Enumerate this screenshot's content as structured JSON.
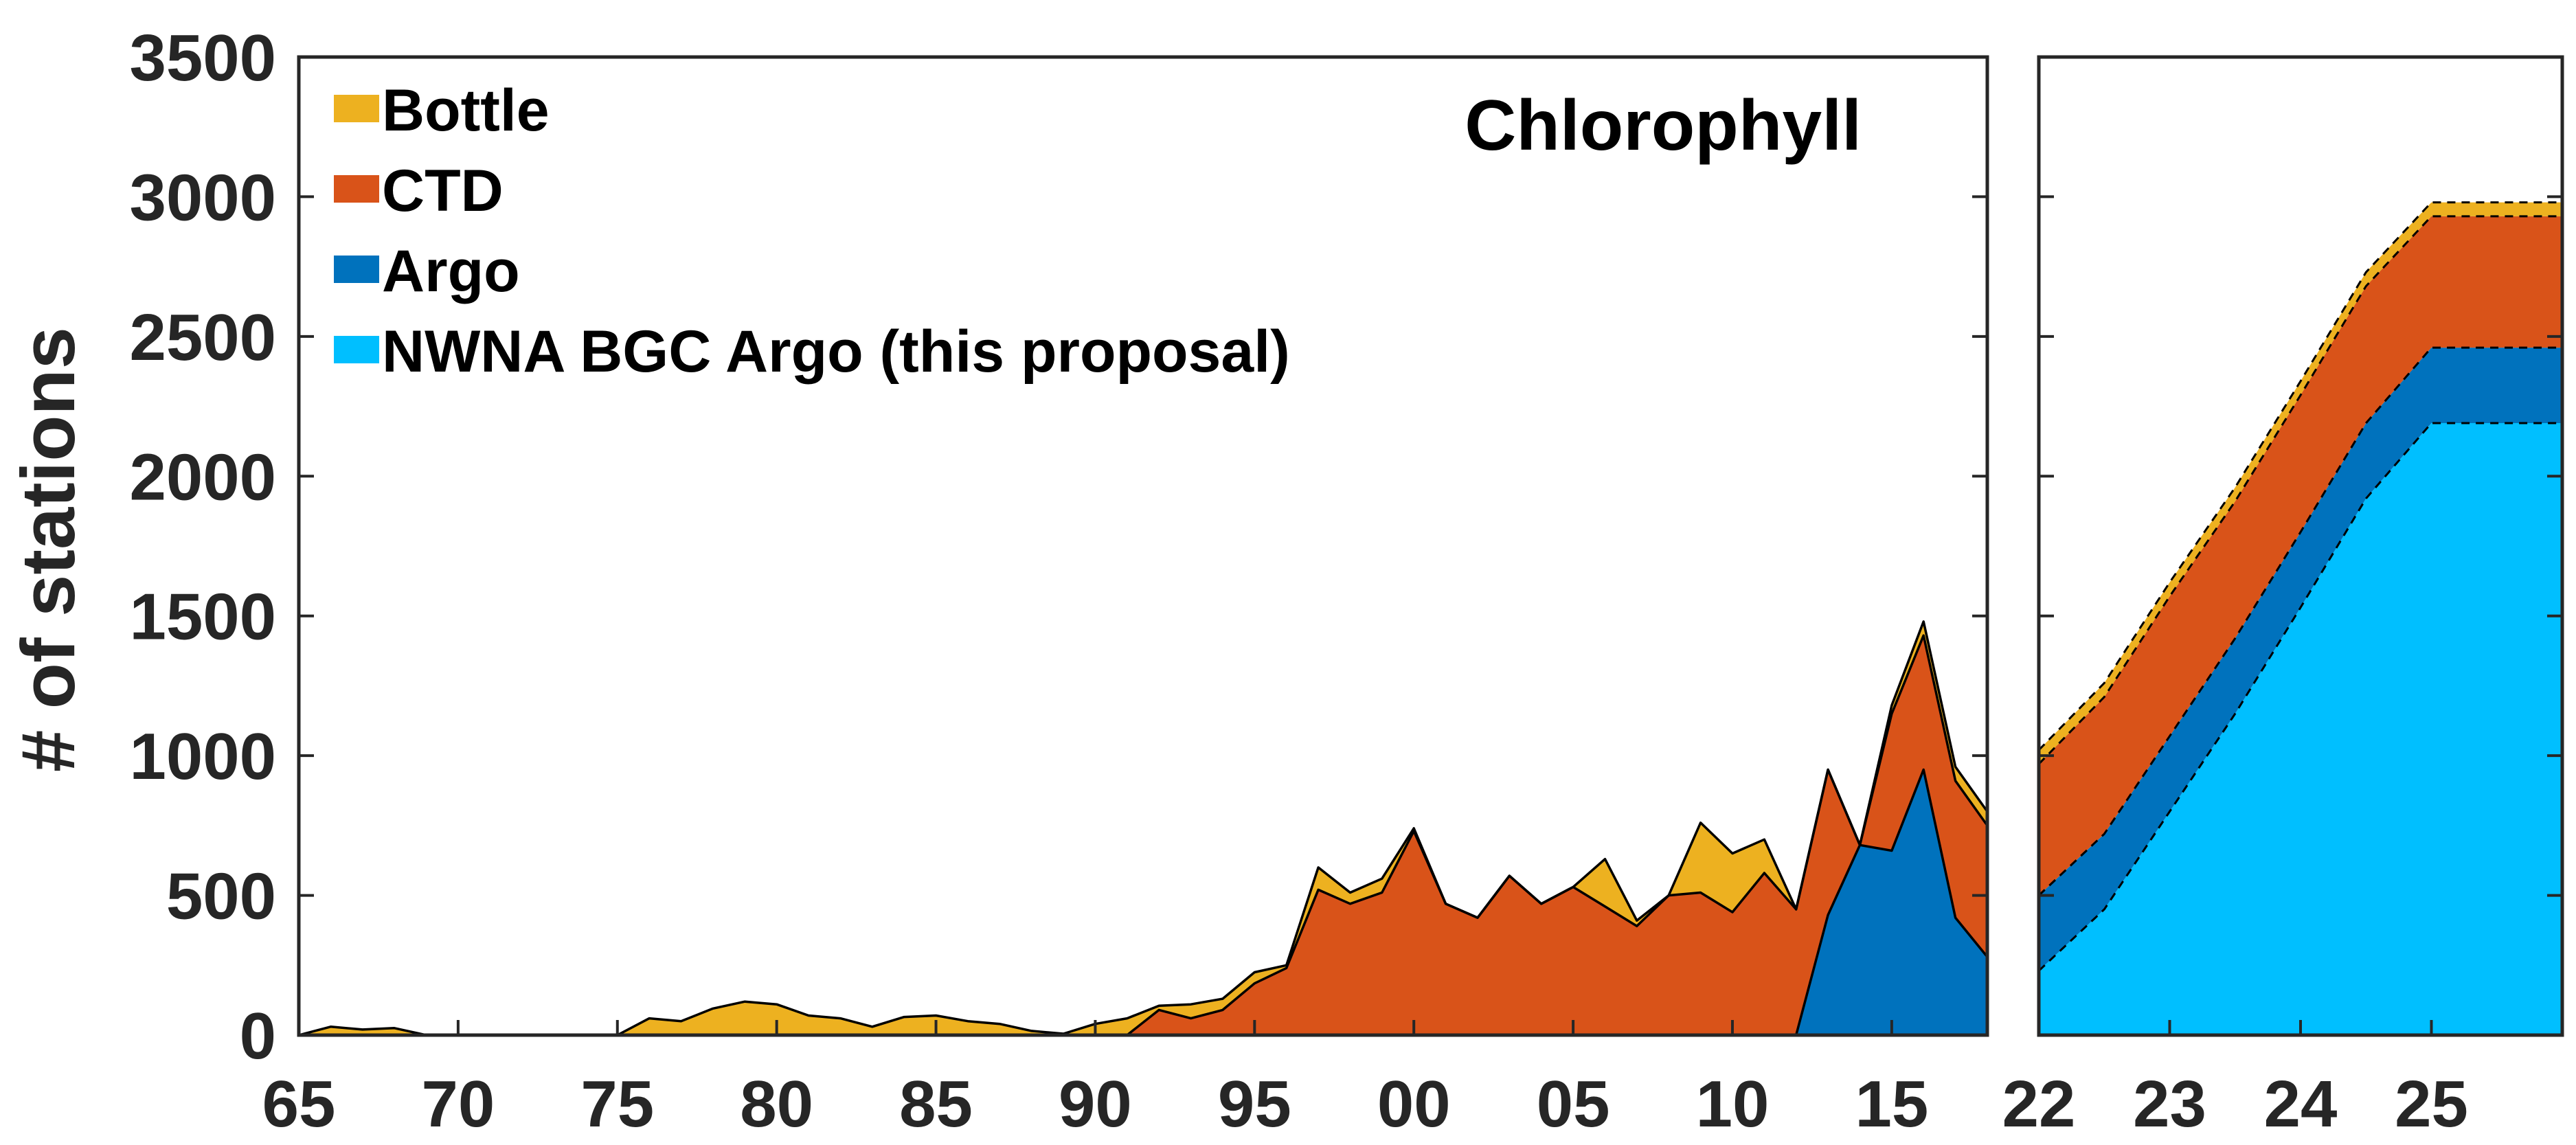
{
  "chart_data": [
    {
      "type": "area",
      "stacked": true,
      "x_unit": "year (two-digit, 1965-2018)",
      "x": [
        1965,
        1966,
        1967,
        1968,
        1969,
        1970,
        1971,
        1972,
        1973,
        1974,
        1975,
        1976,
        1977,
        1978,
        1979,
        1980,
        1981,
        1982,
        1983,
        1984,
        1985,
        1986,
        1987,
        1988,
        1989,
        1990,
        1991,
        1992,
        1993,
        1994,
        1995,
        1996,
        1997,
        1998,
        1999,
        2000,
        2001,
        2002,
        2003,
        2004,
        2005,
        2006,
        2007,
        2008,
        2009,
        2010,
        2011,
        2012,
        2013,
        2014,
        2015,
        2016,
        2017,
        2018
      ],
      "xticks": [
        1965,
        1970,
        1975,
        1980,
        1985,
        1990,
        1995,
        2000,
        2005,
        2010,
        2015
      ],
      "xtick_labels": [
        "65",
        "70",
        "75",
        "80",
        "85",
        "90",
        "95",
        "00",
        "05",
        "10",
        "15"
      ],
      "xlim": [
        1965,
        2018
      ],
      "ylim": [
        0,
        3500
      ],
      "yticks": [
        0,
        500,
        1000,
        1500,
        2000,
        2500,
        3000,
        3500
      ],
      "ytick_labels": [
        "0",
        "500",
        "1000",
        "1500",
        "2000",
        "2500",
        "3000",
        "3500"
      ],
      "ylabel": "# of stations",
      "annotation": "Chlorophyll",
      "legend_position": "top-left",
      "series": [
        {
          "name": "NWNA BGC Argo (this proposal)",
          "color": "#00BFFF",
          "values": [
            0,
            0,
            0,
            0,
            0,
            0,
            0,
            0,
            0,
            0,
            0,
            0,
            0,
            0,
            0,
            0,
            0,
            0,
            0,
            0,
            0,
            0,
            0,
            0,
            0,
            0,
            0,
            0,
            0,
            0,
            0,
            0,
            0,
            0,
            0,
            0,
            0,
            0,
            0,
            0,
            0,
            0,
            0,
            0,
            0,
            0,
            0,
            0,
            0,
            0,
            0,
            0,
            0,
            0
          ]
        },
        {
          "name": "Argo",
          "color": "#0072BD",
          "values": [
            0,
            0,
            0,
            0,
            0,
            0,
            0,
            0,
            0,
            0,
            0,
            0,
            0,
            0,
            0,
            0,
            0,
            0,
            0,
            0,
            0,
            0,
            0,
            0,
            0,
            0,
            0,
            0,
            0,
            0,
            0,
            0,
            0,
            0,
            0,
            0,
            0,
            0,
            0,
            0,
            0,
            0,
            0,
            0,
            0,
            0,
            0,
            0,
            430,
            680,
            660,
            950,
            420,
            280
          ]
        },
        {
          "name": "CTD",
          "color": "#D95319",
          "values": [
            0,
            0,
            0,
            0,
            0,
            0,
            0,
            0,
            0,
            0,
            0,
            0,
            0,
            0,
            0,
            0,
            0,
            0,
            0,
            0,
            0,
            0,
            0,
            0,
            0,
            0,
            0,
            90,
            60,
            90,
            185,
            240,
            520,
            470,
            510,
            730,
            470,
            420,
            570,
            470,
            530,
            460,
            390,
            500,
            510,
            440,
            580,
            450,
            520,
            0,
            490,
            480,
            490,
            470
          ]
        },
        {
          "name": "Bottle",
          "color": "#EDB120",
          "values": [
            0,
            30,
            20,
            25,
            0,
            0,
            0,
            0,
            0,
            0,
            0,
            60,
            50,
            95,
            120,
            110,
            70,
            60,
            30,
            65,
            70,
            50,
            40,
            15,
            5,
            40,
            60,
            15,
            50,
            40,
            40,
            10,
            80,
            40,
            50,
            10,
            0,
            0,
            0,
            0,
            0,
            170,
            20,
            0,
            250,
            210,
            120,
            0,
            0,
            0,
            30,
            50,
            50,
            50
          ]
        }
      ]
    },
    {
      "type": "area",
      "stacked": true,
      "x_unit": "year (two-digit, 2022-2025)",
      "x": [
        2022.0,
        2022.5,
        2023.0,
        2023.5,
        2024.0,
        2024.5,
        2025.0,
        2025.5,
        2026.0
      ],
      "xticks": [
        2022,
        2023,
        2024,
        2025
      ],
      "xtick_labels": [
        "22",
        "23",
        "24",
        "25"
      ],
      "xlim": [
        2022,
        2026
      ],
      "ylim": [
        0,
        3500
      ],
      "yticks": [
        0,
        500,
        1000,
        1500,
        2000,
        2500,
        3000,
        3500
      ],
      "projected": true,
      "series": [
        {
          "name": "NWNA BGC Argo (this proposal)",
          "color": "#00BFFF",
          "values": [
            230,
            450,
            800,
            1150,
            1530,
            1920,
            2190,
            2190,
            2190
          ]
        },
        {
          "name": "Argo",
          "color": "#0072BD",
          "values": [
            270,
            270,
            270,
            270,
            270,
            270,
            270,
            270,
            270
          ]
        },
        {
          "name": "CTD",
          "color": "#D95319",
          "values": [
            470,
            490,
            500,
            490,
            490,
            490,
            470,
            470,
            470
          ]
        },
        {
          "name": "Bottle",
          "color": "#EDB120",
          "values": [
            50,
            50,
            50,
            50,
            50,
            50,
            50,
            50,
            50
          ]
        }
      ]
    }
  ]
}
